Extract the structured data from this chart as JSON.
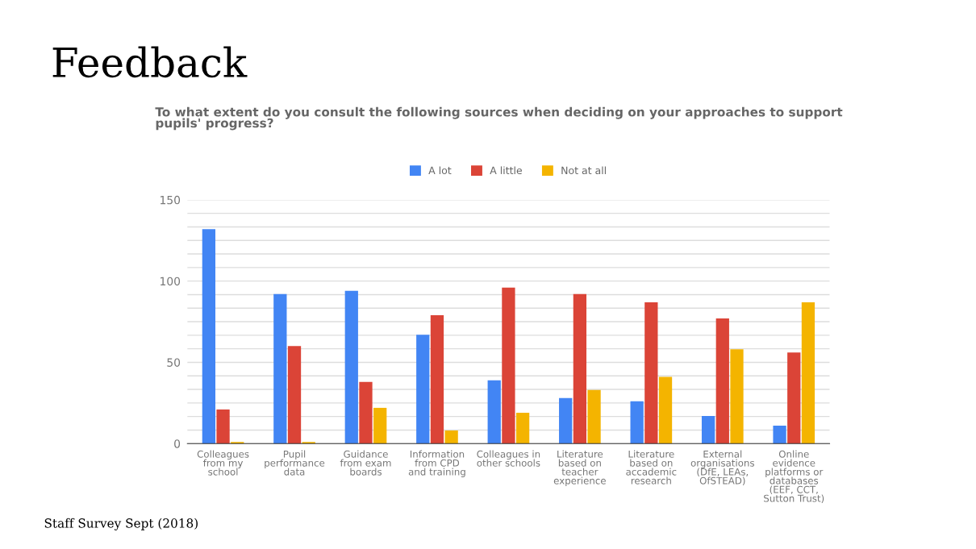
{
  "chart_data": {
    "type": "bar",
    "title": "Feedback",
    "subtitle": "To what extent do you consult the following sources when deciding on your approaches to support\npupils' progress?",
    "categories": [
      "Colleagues\nfrom my\nschool",
      "Pupil\nperformance\ndata",
      "Guidance\nfrom exam\nboards",
      "Information\nfrom CPD\nand training",
      "Colleagues in\nother schools",
      "Literature\nbased on\nteacher\nexperience",
      "Literature\nbased on\naccademic\nresearch",
      "External\norganisations\n(DfE, LEAs,\nOfSTEAD)",
      "Online\nevidence\nplatforms or\ndatabases\n(EEF, CCT,\nSutton Trust)"
    ],
    "series": [
      {
        "name": "A lot",
        "color": "#4285f4",
        "values": [
          132,
          92,
          94,
          67,
          39,
          28,
          26,
          17,
          11
        ]
      },
      {
        "name": "A little",
        "color": "#db4437",
        "values": [
          21,
          60,
          38,
          79,
          96,
          92,
          87,
          77,
          56
        ]
      },
      {
        "name": "Not at all",
        "color": "#f4b400",
        "values": [
          1,
          1,
          22,
          8,
          19,
          33,
          41,
          58,
          87
        ]
      }
    ],
    "ylim": [
      0,
      150
    ],
    "yticks": [
      0,
      {
        "value": 8.33,
        "label": null
      },
      {
        "value": 16.67,
        "label": null
      },
      {
        "value": 25,
        "label": null
      },
      {
        "value": 33.33,
        "label": null
      },
      {
        "value": 41.67,
        "label": null
      },
      50,
      {
        "value": 58.33,
        "label": null
      },
      {
        "value": 66.67,
        "label": null
      },
      {
        "value": 75,
        "label": null
      },
      {
        "value": 83.33,
        "label": null
      },
      {
        "value": 91.67,
        "label": null
      },
      100,
      {
        "value": 108.33,
        "label": null
      },
      {
        "value": 116.67,
        "label": null
      },
      {
        "value": 125,
        "label": null
      },
      {
        "value": 133.33,
        "label": null
      },
      {
        "value": 141.67,
        "label": null
      },
      150
    ],
    "grid": "y",
    "legend": "top",
    "annotations": [
      "Staff Survey Sept (2018)"
    ]
  }
}
